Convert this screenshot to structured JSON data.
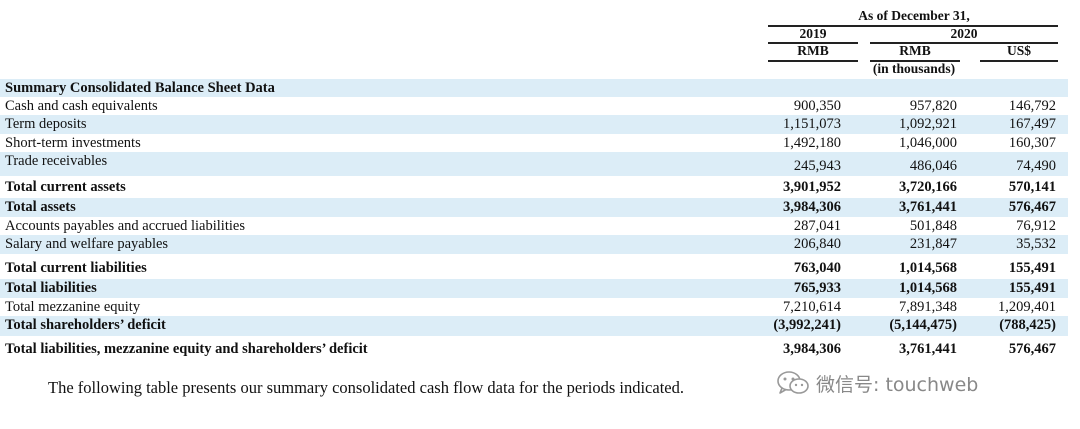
{
  "header": {
    "as_of": "As of December 31,",
    "year_2019": "2019",
    "year_2020": "2020",
    "cur_2019": "RMB",
    "cur_2020": "RMB",
    "cur_usd": "US$",
    "unit": "(in thousands)"
  },
  "section_title": "Summary Consolidated Balance Sheet Data",
  "rows": [
    {
      "label": "Cash and cash equivalents",
      "v2019": "900,350",
      "v2020": "957,820",
      "usd": "146,792"
    },
    {
      "label": "Term deposits",
      "v2019": "1,151,073",
      "v2020": "1,092,921",
      "usd": "167,497"
    },
    {
      "label": "Short-term investments",
      "v2019": "1,492,180",
      "v2020": "1,046,000",
      "usd": "160,307"
    },
    {
      "label": "Trade receivables",
      "v2019": "245,943",
      "v2020": "486,046",
      "usd": "74,490"
    },
    {
      "label": "Total current assets",
      "v2019": "3,901,952",
      "v2020": "3,720,166",
      "usd": "570,141"
    },
    {
      "label": "Total assets",
      "v2019": "3,984,306",
      "v2020": "3,761,441",
      "usd": "576,467"
    },
    {
      "label": "Accounts payables and accrued liabilities",
      "v2019": "287,041",
      "v2020": "501,848",
      "usd": "76,912"
    },
    {
      "label": "Salary and welfare payables",
      "v2019": "206,840",
      "v2020": "231,847",
      "usd": "35,532"
    },
    {
      "label": "Total current liabilities",
      "v2019": "763,040",
      "v2020": "1,014,568",
      "usd": "155,491"
    },
    {
      "label": "Total liabilities",
      "v2019": "765,933",
      "v2020": "1,014,568",
      "usd": "155,491"
    },
    {
      "label": "Total mezzanine equity",
      "v2019": "7,210,614",
      "v2020": "7,891,348",
      "usd": "1,209,401"
    },
    {
      "label": "Total shareholders’ deficit",
      "v2019": "(3,992,241)",
      "v2020": "(5,144,475)",
      "usd": "(788,425)"
    },
    {
      "label": "Total liabilities, mezzanine equity and shareholders’ deficit",
      "v2019": "3,984,306",
      "v2020": "3,761,441",
      "usd": "576,467"
    }
  ],
  "footer_text": "The following table presents our summary consolidated cash flow data for the periods indicated.",
  "watermark": {
    "icon": "wechat-icon",
    "text": "微信号: touchweb"
  },
  "colors": {
    "shade": "#dcedf7",
    "text": "#111111",
    "watermark": "#888888"
  }
}
